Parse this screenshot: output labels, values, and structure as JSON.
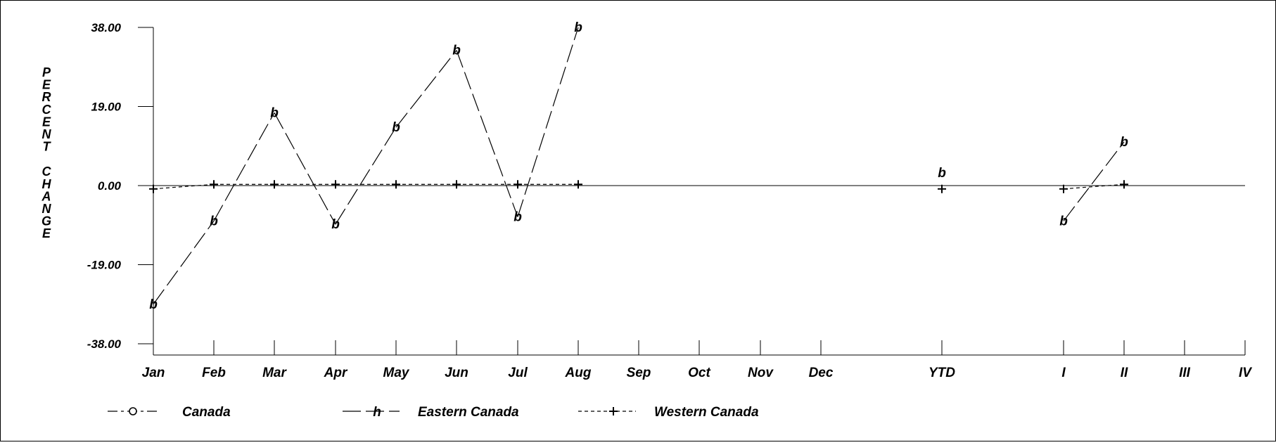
{
  "chart_data": {
    "type": "line",
    "ylabel": "PERCENT CHANGE",
    "ylim": [
      -38,
      38
    ],
    "yticks": [
      "38.00",
      "19.00",
      "0.00",
      "-19.00",
      "-38.00"
    ],
    "ytick_values": [
      38,
      19,
      0,
      -19,
      -38
    ],
    "categories": [
      "Jan",
      "Feb",
      "Mar",
      "Apr",
      "May",
      "Jun",
      "Jul",
      "Aug",
      "Sep",
      "Oct",
      "Nov",
      "Dec",
      "YTD",
      "I",
      "II",
      "III",
      "IV"
    ],
    "series": [
      {
        "name": "Canada",
        "marker": "o",
        "values": [
          null,
          null,
          null,
          null,
          null,
          null,
          null,
          null,
          null,
          null,
          null,
          null,
          null,
          null,
          null,
          null,
          null
        ]
      },
      {
        "name": "Eastern Canada",
        "marker": "b",
        "values": [
          -28.5,
          -8.5,
          17.5,
          -9.3,
          14.0,
          32.5,
          -7.5,
          38.0,
          null,
          null,
          null,
          null,
          3.0,
          -8.5,
          10.5,
          null,
          null
        ]
      },
      {
        "name": "Western Canada",
        "marker": "+",
        "values": [
          -0.8,
          0.3,
          0.3,
          0.3,
          0.3,
          0.3,
          0.3,
          0.3,
          null,
          null,
          null,
          null,
          -0.8,
          -0.8,
          0.3,
          null,
          null
        ]
      }
    ],
    "legend": [
      "Canada",
      "Eastern Canada",
      "Western Canada"
    ],
    "legend_placement": "bottom",
    "point_label": "b",
    "grid": false
  }
}
